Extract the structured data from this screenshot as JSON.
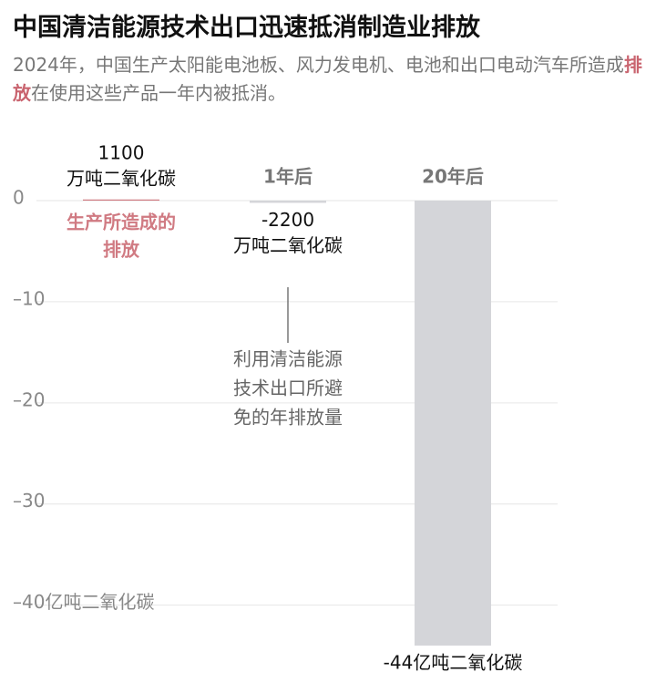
{
  "chart_data": {
    "type": "bar",
    "title": "中国清洁能源技术出口迅速抵消制造业排放",
    "subtitle": [
      "2024年，中国生产太阳能电池板、风力发电机、电池和出口电动汽车所造成",
      "排放",
      "在使用这些产品一年内被抵消。"
    ],
    "categories": [
      null,
      "1年后",
      "20年后"
    ],
    "values": [
      0.11,
      -0.22,
      -44
    ],
    "value_labels": [
      [
        "1100",
        "万吨二氧化碳"
      ],
      [
        "-2200",
        "万吨二氧化碳"
      ],
      [
        "-44亿吨二氧化碳"
      ]
    ],
    "colors": [
      "#d07a82",
      "#d4d5d9",
      "#d4d5d9"
    ],
    "highlight_color": "#c9646f",
    "ylim": [
      -44,
      0
    ],
    "yticks": [
      {
        "value": 0,
        "label": "0"
      },
      {
        "value": -10,
        "label": "–10"
      },
      {
        "value": -20,
        "label": "–20"
      },
      {
        "value": -30,
        "label": "–30"
      },
      {
        "value": -40,
        "label": "–40亿吨二氧化碳"
      }
    ],
    "grid": true,
    "annotations": [
      {
        "lines": [
          "生产所造成的",
          "排放"
        ]
      },
      {
        "lines": [
          "利用清洁能源",
          "技术出口所避",
          "免的年排放量"
        ]
      }
    ]
  }
}
